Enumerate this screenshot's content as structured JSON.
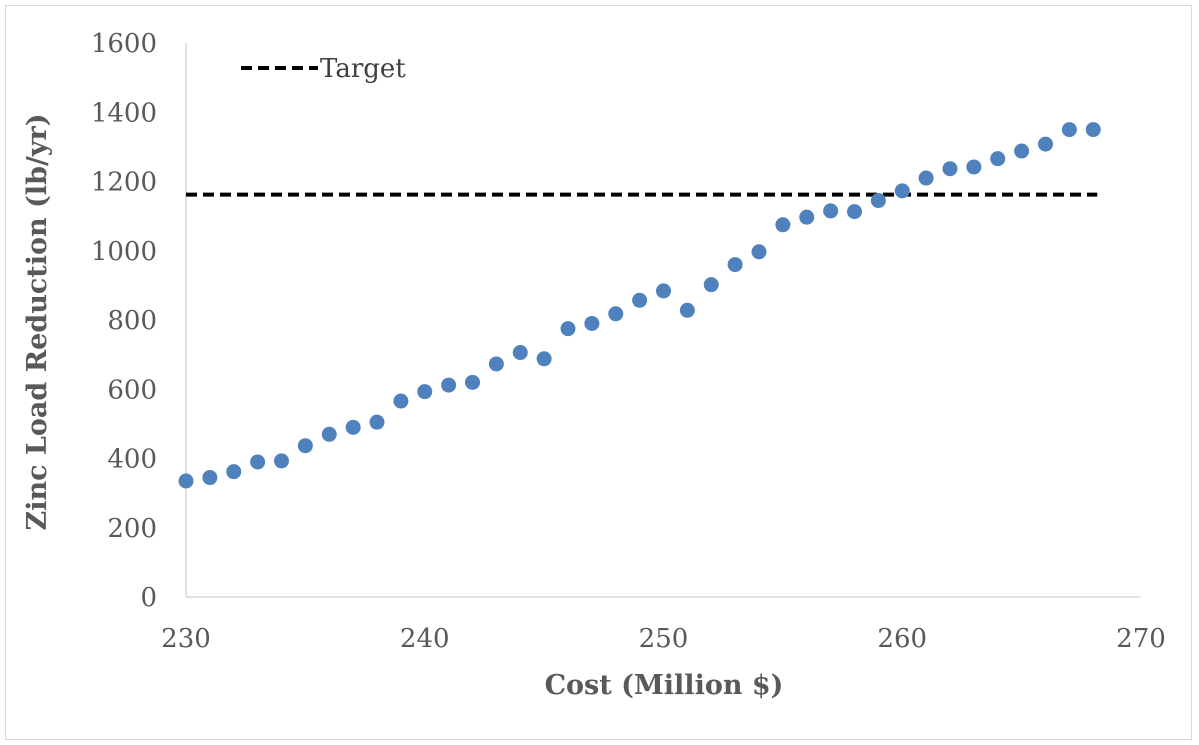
{
  "chart_data": {
    "type": "scatter",
    "title": "",
    "xlabel": "Cost (Million $)",
    "ylabel": "Zinc Load Reduction (lb/yr)",
    "xlim": [
      230,
      270
    ],
    "ylim": [
      0,
      1600
    ],
    "xticks": [
      "230",
      "240",
      "250",
      "260",
      "270"
    ],
    "yticks": [
      "0",
      "200",
      "400",
      "600",
      "800",
      "1000",
      "1200",
      "1400",
      "1600"
    ],
    "grid": false,
    "legend_position": "top-left",
    "series": [
      {
        "name": "",
        "color": "#4f81bd",
        "points": [
          [
            230,
            335
          ],
          [
            231,
            345
          ],
          [
            232,
            362
          ],
          [
            233,
            390
          ],
          [
            234,
            393
          ],
          [
            235,
            437
          ],
          [
            236,
            470
          ],
          [
            237,
            490
          ],
          [
            238,
            505
          ],
          [
            239,
            566
          ],
          [
            240,
            593
          ],
          [
            241,
            612
          ],
          [
            242,
            620
          ],
          [
            243,
            673
          ],
          [
            244,
            706
          ],
          [
            245,
            688
          ],
          [
            246,
            775
          ],
          [
            247,
            790
          ],
          [
            248,
            818
          ],
          [
            249,
            857
          ],
          [
            250,
            884
          ],
          [
            251,
            828
          ],
          [
            252,
            902
          ],
          [
            253,
            960
          ],
          [
            254,
            997
          ],
          [
            255,
            1075
          ],
          [
            256,
            1097
          ],
          [
            257,
            1115
          ],
          [
            258,
            1113
          ],
          [
            259,
            1145
          ],
          [
            260,
            1173
          ],
          [
            261,
            1210
          ],
          [
            262,
            1237
          ],
          [
            263,
            1242
          ],
          [
            264,
            1266
          ],
          [
            265,
            1288
          ],
          [
            266,
            1308
          ],
          [
            267,
            1350
          ],
          [
            268,
            1350
          ]
        ]
      }
    ],
    "target": {
      "name": "Target",
      "value": 1162,
      "x_range": [
        230,
        268
      ],
      "color": "#000000",
      "style": "dashed"
    }
  }
}
